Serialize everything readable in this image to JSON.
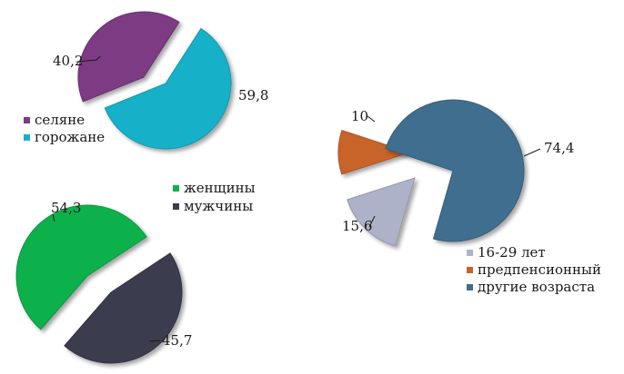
{
  "chart_data": [
    {
      "type": "pie",
      "categories": [
        "селяне",
        "горожане"
      ],
      "values": [
        40.2,
        59.8
      ],
      "value_labels": [
        "40,2",
        "59,8"
      ],
      "colors": [
        "#7b3a82",
        "#17b0c8"
      ],
      "exploded": true,
      "legend_position": "below",
      "title": "",
      "xlabel": "",
      "ylabel": ""
    },
    {
      "type": "pie",
      "categories": [
        "женщины",
        "мужчины"
      ],
      "values": [
        54.3,
        45.7
      ],
      "value_labels": [
        "54,3",
        "45,7"
      ],
      "colors": [
        "#0db14b",
        "#3b3c50"
      ],
      "exploded": true,
      "legend_position": "above",
      "title": "",
      "xlabel": "",
      "ylabel": ""
    },
    {
      "type": "pie",
      "categories": [
        "16-29 лет",
        "предпенсионный",
        "другие возраста"
      ],
      "values": [
        15.6,
        10,
        74.4
      ],
      "value_labels": [
        "15,6",
        "10",
        "74,4"
      ],
      "colors": [
        "#adb2c8",
        "#c8642a",
        "#3f6e8e"
      ],
      "exploded": true,
      "legend_position": "below",
      "title": "",
      "xlabel": "",
      "ylabel": ""
    }
  ]
}
